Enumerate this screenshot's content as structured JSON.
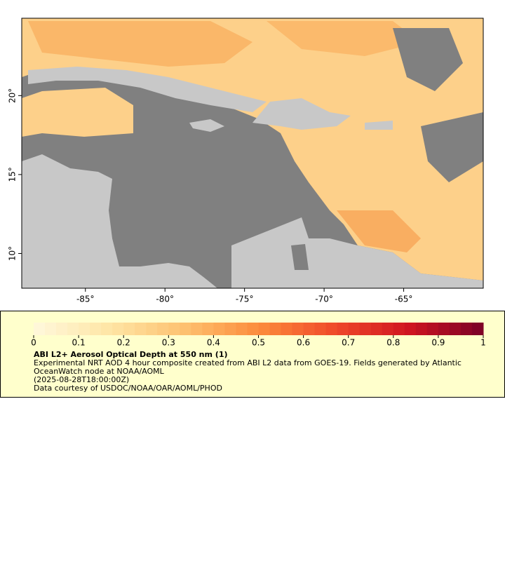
{
  "map": {
    "xlim": [
      -89,
      -60
    ],
    "ylim": [
      7.8,
      24.9
    ],
    "xticks": [
      {
        "value": -85,
        "label": "-85°"
      },
      {
        "value": -80,
        "label": "-80°"
      },
      {
        "value": -75,
        "label": "-75°"
      },
      {
        "value": -70,
        "label": "-70°"
      },
      {
        "value": -65,
        "label": "-65°"
      }
    ],
    "yticks": [
      {
        "value": 20,
        "label": "20°"
      },
      {
        "value": 15,
        "label": "15°"
      },
      {
        "value": 10,
        "label": "10°"
      }
    ]
  },
  "colorbar": {
    "range": [
      0,
      1
    ],
    "ticks": [
      0,
      0.1,
      0.2,
      0.3,
      0.4,
      0.5,
      0.6,
      0.7,
      0.8,
      0.9,
      1
    ],
    "colors": [
      "#fff8dc",
      "#fee6a6",
      "#fdc170",
      "#fc8c3c",
      "#f04a2a",
      "#d01520",
      "#7a0026"
    ]
  },
  "legend": {
    "title": "ABI L2+ Aerosol Optical Depth at 550 nm (1)",
    "description": "Experimental NRT AOD 4 hour composite created from ABI L2 data from GOES-19. Fields generated by Atlantic OceanWatch node at NOAA/AOML",
    "time": "(2025-08-28T18:00:00Z)",
    "credit": "Data courtesy of USDOC/NOAA/OAR/AOML/PHOD"
  }
}
